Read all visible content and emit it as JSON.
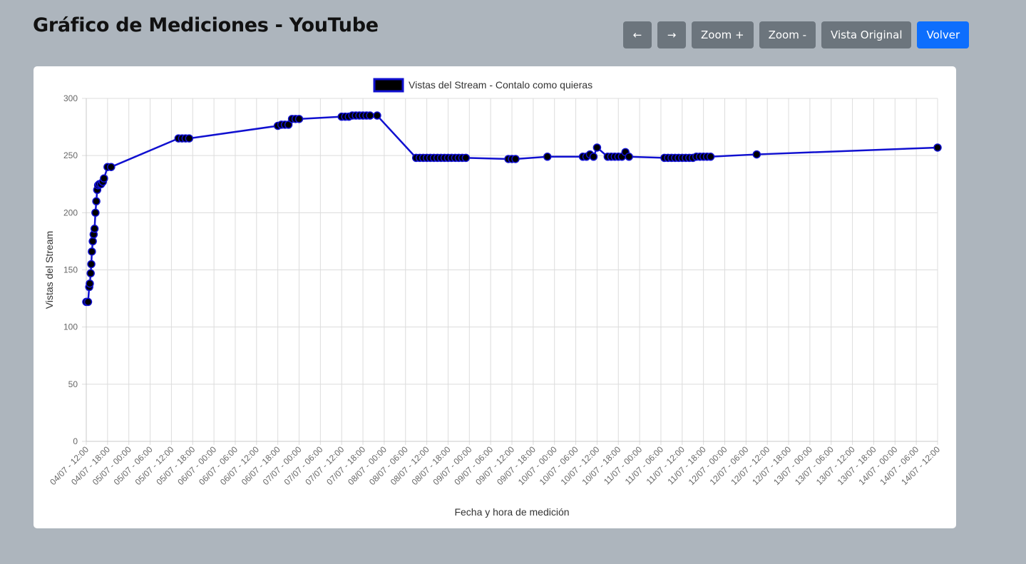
{
  "header": {
    "title": "Gráfico de Mediciones - YouTube"
  },
  "toolbar": {
    "prev_label": "←",
    "next_label": "→",
    "zoom_in_label": "Zoom +",
    "zoom_out_label": "Zoom -",
    "reset_label": "Vista Original",
    "back_label": "Volver"
  },
  "colors": {
    "background": "#adb5bd",
    "secondary_button": "#6c757d",
    "primary_button": "#0d6efd",
    "line": "#1010d0",
    "point": "#000000"
  },
  "chart_data": {
    "type": "line",
    "legend_position": "top",
    "grid": true,
    "xlabel": "Fecha y hora de medición",
    "ylabel": "Vistas del Stream",
    "ylim": [
      0,
      300
    ],
    "yticks": [
      0,
      50,
      100,
      150,
      200,
      250,
      300
    ],
    "x_ticks": [
      "04/07 - 12:00",
      "04/07 - 18:00",
      "05/07 - 00:00",
      "05/07 - 06:00",
      "05/07 - 12:00",
      "05/07 - 18:00",
      "06/07 - 00:00",
      "06/07 - 06:00",
      "06/07 - 12:00",
      "06/07 - 18:00",
      "07/07 - 00:00",
      "07/07 - 06:00",
      "07/07 - 12:00",
      "07/07 - 18:00",
      "08/07 - 00:00",
      "08/07 - 06:00",
      "08/07 - 12:00",
      "08/07 - 18:00",
      "09/07 - 00:00",
      "09/07 - 06:00",
      "09/07 - 12:00",
      "09/07 - 18:00",
      "10/07 - 00:00",
      "10/07 - 06:00",
      "10/07 - 12:00",
      "10/07 - 18:00",
      "11/07 - 00:00",
      "11/07 - 06:00",
      "11/07 - 12:00",
      "11/07 - 18:00",
      "12/07 - 00:00",
      "12/07 - 06:00",
      "12/07 - 12:00",
      "12/07 - 18:00",
      "13/07 - 00:00",
      "13/07 - 06:00",
      "13/07 - 12:00",
      "13/07 - 18:00",
      "14/07 - 00:00",
      "14/07 - 06:00",
      "14/07 - 12:00"
    ],
    "series": [
      {
        "name": "Vistas del Stream - Contalo como quieras",
        "points": [
          {
            "x": "04/07 - 12:00",
            "y": 122
          },
          {
            "x": "04/07 - 12:30",
            "y": 122
          },
          {
            "x": "04/07 - 12:50",
            "y": 135
          },
          {
            "x": "04/07 - 13:00",
            "y": 138
          },
          {
            "x": "04/07 - 13:15",
            "y": 147
          },
          {
            "x": "04/07 - 13:25",
            "y": 155
          },
          {
            "x": "04/07 - 13:35",
            "y": 166
          },
          {
            "x": "04/07 - 13:50",
            "y": 175
          },
          {
            "x": "04/07 - 14:05",
            "y": 181
          },
          {
            "x": "04/07 - 14:20",
            "y": 186
          },
          {
            "x": "04/07 - 14:35",
            "y": 200
          },
          {
            "x": "04/07 - 14:50",
            "y": 210
          },
          {
            "x": "04/07 - 15:05",
            "y": 220
          },
          {
            "x": "04/07 - 15:20",
            "y": 224
          },
          {
            "x": "04/07 - 15:40",
            "y": 225
          },
          {
            "x": "04/07 - 16:10",
            "y": 225
          },
          {
            "x": "04/07 - 16:40",
            "y": 227
          },
          {
            "x": "04/07 - 17:00",
            "y": 230
          },
          {
            "x": "04/07 - 18:00",
            "y": 240
          },
          {
            "x": "04/07 - 19:00",
            "y": 240
          },
          {
            "x": "05/07 - 14:00",
            "y": 265
          },
          {
            "x": "05/07 - 15:00",
            "y": 265
          },
          {
            "x": "05/07 - 16:00",
            "y": 265
          },
          {
            "x": "05/07 - 17:00",
            "y": 265
          },
          {
            "x": "06/07 - 18:00",
            "y": 276
          },
          {
            "x": "06/07 - 19:00",
            "y": 277
          },
          {
            "x": "06/07 - 20:00",
            "y": 277
          },
          {
            "x": "06/07 - 21:00",
            "y": 277
          },
          {
            "x": "06/07 - 22:00",
            "y": 282
          },
          {
            "x": "06/07 - 23:00",
            "y": 282
          },
          {
            "x": "07/07 - 00:00",
            "y": 282
          },
          {
            "x": "07/07 - 12:00",
            "y": 284
          },
          {
            "x": "07/07 - 13:00",
            "y": 284
          },
          {
            "x": "07/07 - 14:00",
            "y": 284
          },
          {
            "x": "07/07 - 15:00",
            "y": 285
          },
          {
            "x": "07/07 - 16:00",
            "y": 285
          },
          {
            "x": "07/07 - 17:00",
            "y": 285
          },
          {
            "x": "07/07 - 18:00",
            "y": 285
          },
          {
            "x": "07/07 - 19:00",
            "y": 285
          },
          {
            "x": "07/07 - 20:00",
            "y": 285
          },
          {
            "x": "07/07 - 22:00",
            "y": 285
          },
          {
            "x": "08/07 - 09:00",
            "y": 248
          },
          {
            "x": "08/07 - 10:00",
            "y": 248
          },
          {
            "x": "08/07 - 11:00",
            "y": 248
          },
          {
            "x": "08/07 - 12:00",
            "y": 248
          },
          {
            "x": "08/07 - 13:00",
            "y": 248
          },
          {
            "x": "08/07 - 14:00",
            "y": 248
          },
          {
            "x": "08/07 - 15:00",
            "y": 248
          },
          {
            "x": "08/07 - 16:00",
            "y": 248
          },
          {
            "x": "08/07 - 17:00",
            "y": 248
          },
          {
            "x": "08/07 - 18:00",
            "y": 248
          },
          {
            "x": "08/07 - 19:00",
            "y": 248
          },
          {
            "x": "08/07 - 20:00",
            "y": 248
          },
          {
            "x": "08/07 - 21:00",
            "y": 248
          },
          {
            "x": "08/07 - 22:00",
            "y": 248
          },
          {
            "x": "08/07 - 23:00",
            "y": 248
          },
          {
            "x": "09/07 - 11:00",
            "y": 247
          },
          {
            "x": "09/07 - 12:00",
            "y": 247
          },
          {
            "x": "09/07 - 13:00",
            "y": 247
          },
          {
            "x": "09/07 - 22:00",
            "y": 249
          },
          {
            "x": "10/07 - 08:00",
            "y": 249
          },
          {
            "x": "10/07 - 09:00",
            "y": 249
          },
          {
            "x": "10/07 - 10:00",
            "y": 251
          },
          {
            "x": "10/07 - 11:00",
            "y": 249
          },
          {
            "x": "10/07 - 12:00",
            "y": 257
          },
          {
            "x": "10/07 - 15:00",
            "y": 249
          },
          {
            "x": "10/07 - 16:00",
            "y": 249
          },
          {
            "x": "10/07 - 17:00",
            "y": 249
          },
          {
            "x": "10/07 - 18:00",
            "y": 249
          },
          {
            "x": "10/07 - 19:00",
            "y": 249
          },
          {
            "x": "10/07 - 20:00",
            "y": 253
          },
          {
            "x": "10/07 - 21:00",
            "y": 249
          },
          {
            "x": "11/07 - 07:00",
            "y": 248
          },
          {
            "x": "11/07 - 08:00",
            "y": 248
          },
          {
            "x": "11/07 - 09:00",
            "y": 248
          },
          {
            "x": "11/07 - 10:00",
            "y": 248
          },
          {
            "x": "11/07 - 11:00",
            "y": 248
          },
          {
            "x": "11/07 - 12:00",
            "y": 248
          },
          {
            "x": "11/07 - 13:00",
            "y": 248
          },
          {
            "x": "11/07 - 14:00",
            "y": 248
          },
          {
            "x": "11/07 - 15:00",
            "y": 248
          },
          {
            "x": "11/07 - 16:00",
            "y": 249
          },
          {
            "x": "11/07 - 17:00",
            "y": 249
          },
          {
            "x": "11/07 - 18:00",
            "y": 249
          },
          {
            "x": "11/07 - 19:00",
            "y": 249
          },
          {
            "x": "11/07 - 20:00",
            "y": 249
          },
          {
            "x": "12/07 - 09:00",
            "y": 251
          },
          {
            "x": "14/07 - 12:00",
            "y": 257
          }
        ]
      }
    ]
  }
}
